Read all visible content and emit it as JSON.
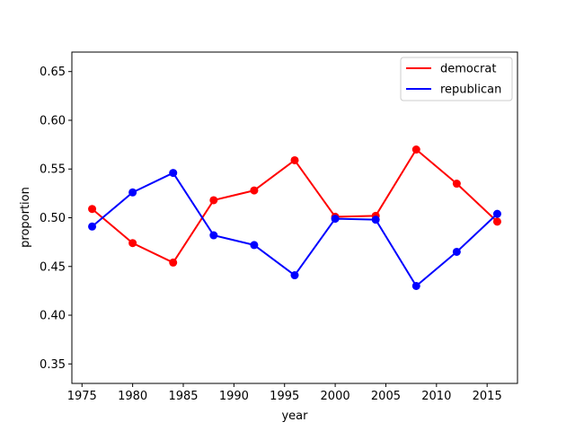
{
  "chart_data": {
    "type": "line",
    "title": "",
    "xlabel": "year",
    "ylabel": "proportion",
    "xlim": [
      1974.0,
      2018.0
    ],
    "ylim": [
      0.33,
      0.67
    ],
    "xticks": [
      1975,
      1980,
      1985,
      1990,
      1995,
      2000,
      2005,
      2010,
      2015
    ],
    "yticks": [
      0.35,
      0.4,
      0.45,
      0.5,
      0.55,
      0.6,
      0.65
    ],
    "xtick_labels": [
      "1975",
      "1980",
      "1985",
      "1990",
      "1995",
      "2000",
      "2005",
      "2010",
      "2015"
    ],
    "ytick_labels": [
      "0.35",
      "0.40",
      "0.45",
      "0.50",
      "0.55",
      "0.60",
      "0.65"
    ],
    "x": [
      1976,
      1980,
      1984,
      1988,
      1992,
      1996,
      2000,
      2004,
      2008,
      2012,
      2016
    ],
    "series": [
      {
        "name": "democrat",
        "color": "#ff0000",
        "values": [
          0.509,
          0.474,
          0.454,
          0.518,
          0.528,
          0.559,
          0.501,
          0.502,
          0.57,
          0.535,
          0.496
        ]
      },
      {
        "name": "republican",
        "color": "#0000ff",
        "values": [
          0.491,
          0.526,
          0.546,
          0.482,
          0.472,
          0.441,
          0.499,
          0.498,
          0.43,
          0.465,
          0.504
        ]
      }
    ],
    "grid": false,
    "legend": "top-right",
    "markers": true
  }
}
